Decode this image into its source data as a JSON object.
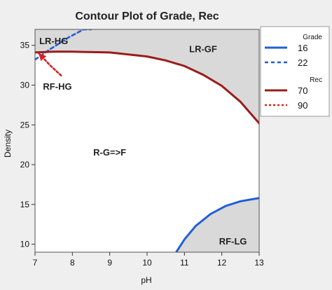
{
  "chart_data": {
    "type": "contour",
    "title": "Contour Plot of Grade, Rec",
    "xlabel": "pH",
    "ylabel": "Density",
    "xlim": [
      7,
      13
    ],
    "ylim": [
      9,
      37
    ],
    "x_ticks": [
      7,
      8,
      9,
      10,
      11,
      12,
      13
    ],
    "y_ticks": [
      10,
      15,
      20,
      25,
      30,
      35
    ],
    "series": [
      {
        "name": "16",
        "group": "Grade",
        "style": "solid",
        "color": "#1f5fd6",
        "x": [
          10.78,
          11.0,
          11.3,
          11.7,
          12.1,
          12.5,
          13.0
        ],
        "y": [
          9.0,
          10.6,
          12.3,
          13.8,
          14.8,
          15.4,
          15.8
        ]
      },
      {
        "name": "22",
        "group": "Grade",
        "style": "dashed",
        "color": "#1f5fd6",
        "x": [
          7.0,
          7.4,
          7.9,
          8.3,
          8.5
        ],
        "y": [
          33.2,
          34.5,
          36.0,
          37.0,
          37.0
        ]
      },
      {
        "name": "70",
        "group": "Rec",
        "style": "solid",
        "color": "#9b1c1c",
        "x": [
          7.0,
          7.5,
          8.0,
          9.0,
          10.0,
          10.5,
          11.0,
          11.5,
          12.0,
          12.5,
          13.0
        ],
        "y": [
          34.1,
          34.2,
          34.2,
          34.1,
          33.6,
          33.1,
          32.4,
          31.3,
          29.9,
          27.9,
          25.2
        ]
      },
      {
        "name": "90",
        "group": "Rec",
        "style": "dotted",
        "color": "#d42222",
        "x": [
          7.1,
          7.4,
          7.7
        ],
        "y": [
          34.0,
          32.5,
          31.2
        ]
      }
    ],
    "regions": [
      {
        "label": "LR-HG",
        "x": 7.5,
        "y": 35.5
      },
      {
        "label": "LR-GF",
        "x": 11.5,
        "y": 34.5
      },
      {
        "label": "RF-HG",
        "x": 7.6,
        "y": 29.8
      },
      {
        "label": "R-G=>F",
        "x": 9.0,
        "y": 21.5
      },
      {
        "label": "RF-LG",
        "x": 12.3,
        "y": 10.3
      }
    ],
    "legend": {
      "position": "right",
      "groups": [
        {
          "header": "Grade",
          "entries": [
            "16",
            "22"
          ]
        },
        {
          "header": "Rec",
          "entries": [
            "70",
            "90"
          ]
        }
      ]
    },
    "colors": {
      "shaded_region": "#d9d9d9",
      "plot_background": "#ffffff",
      "figure_background": "#efefef"
    },
    "grid": false
  }
}
